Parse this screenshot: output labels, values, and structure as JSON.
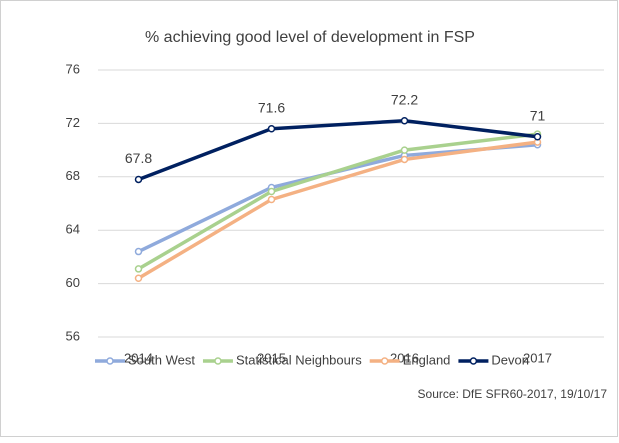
{
  "chart_data": {
    "type": "line",
    "title": "% achieving good level of development in FSP",
    "source": "Source: DfE SFR60-2017, 19/10/17",
    "categories": [
      "2014",
      "2015",
      "2016",
      "2017"
    ],
    "series": [
      {
        "name": "South West",
        "color": "#8faadc",
        "values": [
          62.4,
          67.2,
          69.6,
          70.4
        ]
      },
      {
        "name": "Statistical Neighbours",
        "color": "#a9d18e",
        "values": [
          61.1,
          66.9,
          70.0,
          71.2
        ]
      },
      {
        "name": "England",
        "color": "#f4b183",
        "values": [
          60.4,
          66.3,
          69.3,
          70.6
        ]
      },
      {
        "name": "Devon",
        "color": "#002060",
        "values": [
          67.8,
          71.6,
          72.2,
          71
        ],
        "show_labels": true
      }
    ],
    "ylim": [
      56,
      76
    ],
    "yticks": [
      56,
      60,
      64,
      68,
      72,
      76
    ],
    "grid": true
  }
}
